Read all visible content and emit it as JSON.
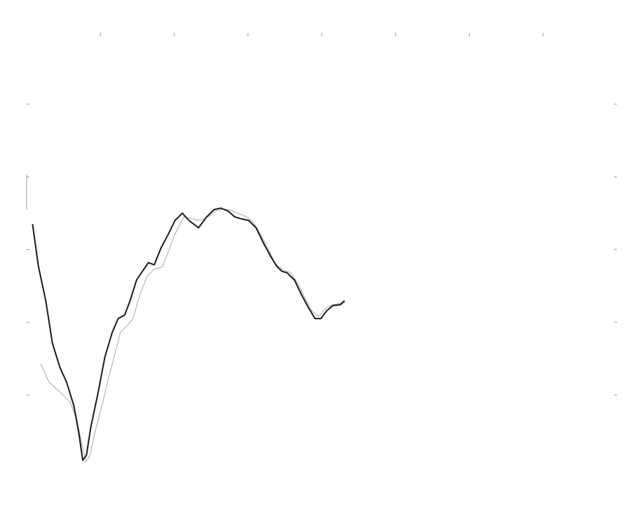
{
  "chart_data": {
    "type": "line",
    "xlim": [
      0,
      8
    ],
    "xticks": [
      1,
      2,
      3,
      4,
      5,
      6,
      7
    ],
    "ylim": [
      0,
      6
    ],
    "yticks": [
      1,
      2,
      3,
      4,
      5
    ],
    "series": [
      {
        "color": "#1a1a1a",
        "x": [
          0.08,
          0.16,
          0.26,
          0.35,
          0.45,
          0.54,
          0.64,
          0.71,
          0.76,
          0.81,
          0.87,
          0.97,
          1.06,
          1.16,
          1.24,
          1.33,
          1.4,
          1.49,
          1.59,
          1.65,
          1.73,
          1.82,
          1.92,
          2.01,
          2.11,
          2.2,
          2.33,
          2.44,
          2.54,
          2.63,
          2.73,
          2.82,
          2.92,
          3.01,
          3.11,
          3.2,
          3.3,
          3.39,
          3.46,
          3.53,
          3.63,
          3.72,
          3.82,
          3.91,
          3.99,
          4.06,
          4.15,
          4.25,
          4.31
        ],
        "values": [
          3.35,
          2.77,
          2.29,
          1.71,
          1.38,
          1.18,
          0.85,
          0.46,
          0.1,
          0.17,
          0.56,
          1.04,
          1.52,
          1.86,
          2.05,
          2.1,
          2.29,
          2.58,
          2.73,
          2.82,
          2.79,
          3.02,
          3.21,
          3.4,
          3.5,
          3.4,
          3.3,
          3.45,
          3.55,
          3.57,
          3.53,
          3.45,
          3.42,
          3.4,
          3.3,
          3.11,
          2.92,
          2.77,
          2.7,
          2.68,
          2.58,
          2.39,
          2.2,
          2.05,
          2.05,
          2.15,
          2.23,
          2.24,
          2.29
        ]
      },
      {
        "color": "#b5b5b5",
        "x": [
          0.19,
          0.3,
          0.45,
          0.59,
          0.68,
          0.76,
          0.8,
          0.86,
          0.92,
          1.02,
          1.11,
          1.21,
          1.27,
          1.37,
          1.44,
          1.54,
          1.63,
          1.73,
          1.84,
          1.92,
          2.01,
          2.13,
          2.22,
          2.35,
          2.46,
          2.56,
          2.66,
          2.77,
          2.87,
          2.98,
          3.08,
          3.17,
          3.27,
          3.36,
          3.46,
          3.58,
          3.68,
          3.77,
          3.87,
          3.96,
          4.06,
          4.15,
          4.25,
          4.31
        ],
        "values": [
          1.43,
          1.18,
          1.04,
          0.9,
          0.66,
          0.27,
          0.08,
          0.17,
          0.46,
          0.85,
          1.23,
          1.62,
          1.86,
          1.96,
          2.05,
          2.39,
          2.63,
          2.73,
          2.76,
          2.97,
          3.21,
          3.45,
          3.43,
          3.4,
          3.45,
          3.53,
          3.56,
          3.54,
          3.5,
          3.45,
          3.37,
          3.21,
          3.02,
          2.82,
          2.73,
          2.68,
          2.53,
          2.34,
          2.15,
          2.08,
          2.2,
          2.24,
          2.26,
          2.31
        ]
      }
    ]
  }
}
